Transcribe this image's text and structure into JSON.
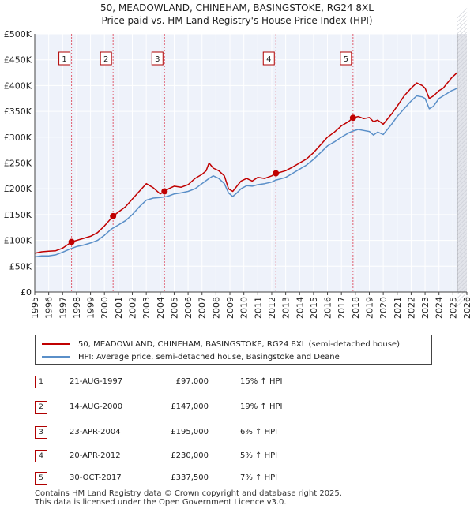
{
  "chart_data": {
    "type": "line",
    "title": "50, MEADOWLAND, CHINEHAM, BASINGSTOKE, RG24 8XL",
    "subtitle": "Price paid vs. HM Land Registry's House Price Index (HPI)",
    "xlabel": "",
    "ylabel": "",
    "xlim": [
      1995,
      2026
    ],
    "ylim": [
      0,
      500000
    ],
    "y_ticks": [
      0,
      50000,
      100000,
      150000,
      200000,
      250000,
      300000,
      350000,
      400000,
      450000,
      500000
    ],
    "y_tick_labels": [
      "£0",
      "£50K",
      "£100K",
      "£150K",
      "£200K",
      "£250K",
      "£300K",
      "£350K",
      "£400K",
      "£450K",
      "£500K"
    ],
    "x_ticks": [
      1995,
      1996,
      1997,
      1998,
      1999,
      2000,
      2001,
      2002,
      2003,
      2004,
      2005,
      2006,
      2007,
      2008,
      2009,
      2010,
      2011,
      2012,
      2013,
      2014,
      2015,
      2016,
      2017,
      2018,
      2019,
      2020,
      2021,
      2022,
      2023,
      2024,
      2025,
      2026
    ],
    "x_tick_labels": [
      "1995",
      "1996",
      "1997",
      "1998",
      "1999",
      "2000",
      "2001",
      "2002",
      "2003",
      "2004",
      "2005",
      "2006",
      "2007",
      "2008",
      "2009",
      "2010",
      "2011",
      "2012",
      "2013",
      "2014",
      "2015",
      "2016",
      "2017",
      "2018",
      "2019",
      "2020",
      "2021",
      "2022",
      "2023",
      "2024",
      "2025",
      "2026"
    ],
    "grid": true,
    "data_end_year": 2025.3,
    "series": [
      {
        "name": "50, MEADOWLAND, CHINEHAM, BASINGSTOKE, RG24 8XL (semi-detached house)",
        "color": "#c00000",
        "x": [
          1995.0,
          1995.5,
          1996.0,
          1996.5,
          1997.0,
          1997.64,
          1998.0,
          1998.5,
          1999.0,
          1999.5,
          2000.0,
          2000.62,
          2001.0,
          2001.5,
          2002.0,
          2002.5,
          2003.0,
          2003.5,
          2004.0,
          2004.31,
          2004.6,
          2005.0,
          2005.5,
          2006.0,
          2006.5,
          2007.0,
          2007.3,
          2007.5,
          2007.8,
          2008.2,
          2008.6,
          2008.9,
          2009.2,
          2009.5,
          2009.8,
          2010.2,
          2010.6,
          2011.0,
          2011.5,
          2012.0,
          2012.3,
          2012.6,
          2013.0,
          2013.5,
          2014.0,
          2014.5,
          2015.0,
          2015.5,
          2016.0,
          2016.5,
          2017.0,
          2017.5,
          2017.83,
          2018.2,
          2018.6,
          2019.0,
          2019.3,
          2019.6,
          2020.0,
          2020.3,
          2020.6,
          2021.0,
          2021.5,
          2022.0,
          2022.4,
          2022.8,
          2023.0,
          2023.3,
          2023.6,
          2024.0,
          2024.3,
          2024.6,
          2024.9,
          2025.1,
          2025.3
        ],
        "values": [
          75000,
          78000,
          79000,
          80000,
          85000,
          97000,
          100000,
          104000,
          108000,
          115000,
          128000,
          147000,
          155000,
          165000,
          180000,
          195000,
          210000,
          202000,
          190000,
          195000,
          200000,
          205000,
          203000,
          208000,
          220000,
          228000,
          235000,
          250000,
          240000,
          235000,
          225000,
          200000,
          195000,
          205000,
          215000,
          220000,
          215000,
          222000,
          220000,
          225000,
          230000,
          232000,
          235000,
          242000,
          250000,
          258000,
          270000,
          285000,
          300000,
          310000,
          322000,
          330000,
          337500,
          340000,
          336000,
          338000,
          330000,
          333000,
          325000,
          335000,
          345000,
          360000,
          380000,
          395000,
          405000,
          400000,
          395000,
          375000,
          380000,
          390000,
          395000,
          405000,
          415000,
          420000,
          425000
        ]
      },
      {
        "name": "HPI: Average price, semi-detached house, Basingstoke and Deane",
        "color": "#5a8fc8",
        "x": [
          1995.0,
          1995.5,
          1996.0,
          1996.5,
          1997.0,
          1997.5,
          1998.0,
          1998.5,
          1999.0,
          1999.5,
          2000.0,
          2000.5,
          2001.0,
          2001.5,
          2002.0,
          2002.5,
          2003.0,
          2003.5,
          2004.0,
          2004.5,
          2005.0,
          2005.5,
          2006.0,
          2006.5,
          2007.0,
          2007.5,
          2007.8,
          2008.2,
          2008.6,
          2008.9,
          2009.2,
          2009.5,
          2009.8,
          2010.2,
          2010.6,
          2011.0,
          2011.5,
          2012.0,
          2012.3,
          2012.6,
          2013.0,
          2013.5,
          2014.0,
          2014.5,
          2015.0,
          2015.5,
          2016.0,
          2016.5,
          2017.0,
          2017.5,
          2017.83,
          2018.2,
          2018.6,
          2019.0,
          2019.3,
          2019.6,
          2020.0,
          2020.3,
          2020.6,
          2021.0,
          2021.5,
          2022.0,
          2022.4,
          2022.8,
          2023.0,
          2023.3,
          2023.6,
          2024.0,
          2024.3,
          2024.6,
          2024.9,
          2025.1,
          2025.3
        ],
        "values": [
          68000,
          70000,
          70000,
          72000,
          77000,
          83000,
          88000,
          91000,
          95000,
          100000,
          110000,
          122000,
          130000,
          138000,
          150000,
          165000,
          178000,
          182000,
          183000,
          185000,
          190000,
          192000,
          195000,
          200000,
          210000,
          220000,
          225000,
          220000,
          210000,
          192000,
          185000,
          192000,
          200000,
          206000,
          205000,
          208000,
          210000,
          213000,
          217000,
          219000,
          222000,
          230000,
          238000,
          246000,
          257000,
          270000,
          283000,
          291000,
          300000,
          308000,
          312000,
          315000,
          313000,
          311000,
          304000,
          310000,
          305000,
          315000,
          325000,
          340000,
          355000,
          370000,
          380000,
          378000,
          375000,
          355000,
          360000,
          375000,
          380000,
          385000,
          390000,
          392000,
          395000
        ]
      }
    ],
    "sales": [
      {
        "num": "1",
        "date": "21-AUG-1997",
        "price": "£97,000",
        "hpi": "15% ↑ HPI",
        "x": 1997.64,
        "value": 97000
      },
      {
        "num": "2",
        "date": "14-AUG-2000",
        "price": "£147,000",
        "hpi": "19% ↑ HPI",
        "x": 2000.62,
        "value": 147000
      },
      {
        "num": "3",
        "date": "23-APR-2004",
        "price": "£195,000",
        "hpi": "6% ↑ HPI",
        "x": 2004.31,
        "value": 195000
      },
      {
        "num": "4",
        "date": "20-APR-2012",
        "price": "£230,000",
        "hpi": "5% ↑ HPI",
        "x": 2012.3,
        "value": 230000
      },
      {
        "num": "5",
        "date": "30-OCT-2017",
        "price": "£337,500",
        "hpi": "7% ↑ HPI",
        "x": 2017.83,
        "value": 337500
      }
    ]
  },
  "legend": {
    "property_label": "50, MEADOWLAND, CHINEHAM, BASINGSTOKE, RG24 8XL (semi-detached house)",
    "hpi_label": "HPI: Average price, semi-detached house, Basingstoke and Deane",
    "property_color": "#c00000",
    "hpi_color": "#5a8fc8"
  },
  "footer": {
    "line1": "Contains HM Land Registry data © Crown copyright and database right 2025.",
    "line2": "This data is licensed under the Open Government Licence v3.0."
  }
}
